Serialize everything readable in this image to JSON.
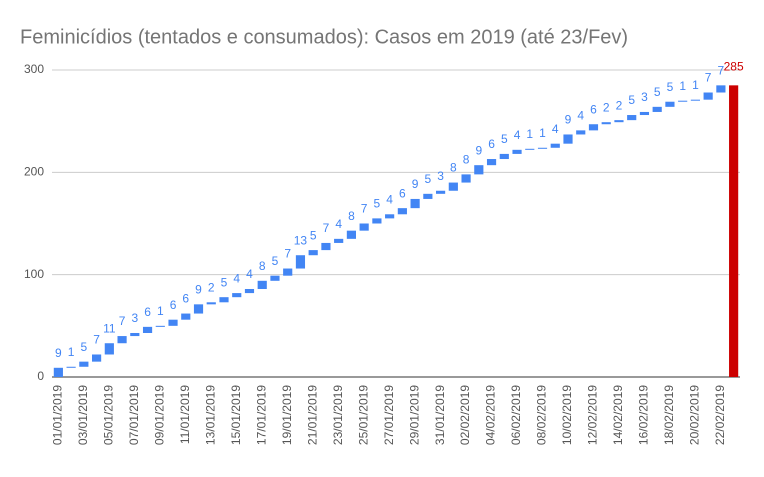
{
  "chart_data": {
    "type": "waterfall",
    "title": "Feminicídios (tentados e consumados): Casos em 2019 (até 23/Fev)",
    "categories": [
      "01/01/2019",
      null,
      "03/01/2019",
      null,
      "05/01/2019",
      null,
      "07/01/2019",
      null,
      "09/01/2019",
      null,
      "11/01/2019",
      null,
      "13/01/2019",
      null,
      "15/01/2019",
      null,
      "17/01/2019",
      null,
      "19/01/2019",
      null,
      "21/01/2019",
      null,
      "23/01/2019",
      null,
      "25/01/2019",
      null,
      "27/01/2019",
      null,
      "29/01/2019",
      null,
      "31/01/2019",
      null,
      "02/02/2019",
      null,
      "04/02/2019",
      null,
      "06/02/2019",
      null,
      "08/02/2019",
      null,
      "10/02/2019",
      null,
      "12/02/2019",
      null,
      "14/02/2019",
      null,
      "16/02/2019",
      null,
      "18/02/2019",
      null,
      "20/02/2019",
      null,
      "22/02/2019"
    ],
    "values": [
      9,
      1,
      5,
      7,
      11,
      7,
      3,
      6,
      1,
      6,
      6,
      9,
      2,
      5,
      4,
      4,
      8,
      5,
      7,
      13,
      5,
      7,
      4,
      8,
      7,
      5,
      4,
      6,
      9,
      5,
      3,
      8,
      8,
      9,
      6,
      5,
      4,
      1,
      1,
      4,
      9,
      4,
      6,
      2,
      2,
      5,
      3,
      5,
      5,
      1,
      1,
      7,
      7
    ],
    "color": "#4285f4",
    "total": 285,
    "total_color": "#cc0000",
    "ylim": [
      0,
      300
    ],
    "yticks": [
      0,
      100,
      200,
      300
    ],
    "grid": true
  }
}
